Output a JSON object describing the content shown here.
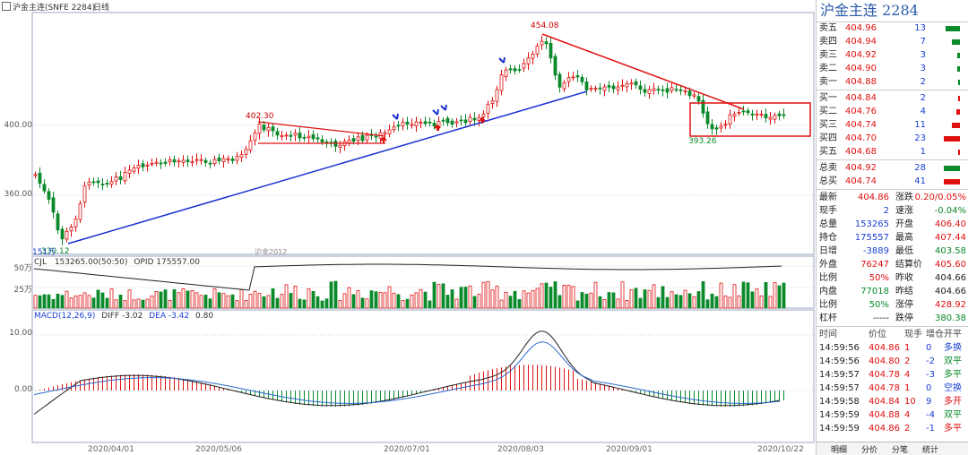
{
  "header": {
    "title": "沪金主连(SNFE 2284)",
    "period": "日线"
  },
  "watermark": "沪金2012",
  "price_axis": [
    "400.00",
    "360.00"
  ],
  "annotations": {
    "high": "454.08",
    "low": "330.12",
    "left_peak": "402.30",
    "right_low": "393.26",
    "vol_label": "151万"
  },
  "volume": {
    "title": "CJL",
    "vol": "153265.00(50:50)",
    "opid": "OPID 175557.00",
    "ticks": [
      "50万",
      "25万"
    ]
  },
  "macd": {
    "title": "MACD(12,26,9)",
    "diff": "DIFF -3.02",
    "dea": "DEA -3.42",
    "macd": "0.80",
    "ticks": [
      "10.00",
      "0.00"
    ]
  },
  "dates": [
    "2020/04/01",
    "2020/05/06",
    "2020/07/01",
    "2020/08/03",
    "2020/09/01",
    "2020/10/22"
  ],
  "sidebar": {
    "title": "沪金主连  2284",
    "asks": [
      {
        "label": "卖五",
        "price": "404.96",
        "vol": "13",
        "bar": 0.9
      },
      {
        "label": "卖四",
        "price": "404.94",
        "vol": "7",
        "bar": 0.5
      },
      {
        "label": "卖三",
        "price": "404.92",
        "vol": "3",
        "bar": 0.15
      },
      {
        "label": "卖二",
        "price": "404.90",
        "vol": "3",
        "bar": 0.15
      },
      {
        "label": "卖一",
        "price": "404.88",
        "vol": "2",
        "bar": 0.1
      }
    ],
    "bids": [
      {
        "label": "买一",
        "price": "404.84",
        "vol": "2",
        "bar": 0.1
      },
      {
        "label": "买二",
        "price": "404.76",
        "vol": "4",
        "bar": 0.2
      },
      {
        "label": "买三",
        "price": "404.74",
        "vol": "11",
        "bar": 0.5
      },
      {
        "label": "买四",
        "price": "404.70",
        "vol": "23",
        "bar": 1.0
      },
      {
        "label": "买五",
        "price": "404.68",
        "vol": "1",
        "bar": 0.05
      }
    ],
    "totals": [
      {
        "label": "总卖",
        "price": "404.92",
        "vol": "28"
      },
      {
        "label": "总买",
        "price": "404.74",
        "vol": "41"
      }
    ],
    "stats_left": [
      {
        "k": "最新",
        "v": "404.86",
        "c": "red"
      },
      {
        "k": "现手",
        "v": "2",
        "c": "blue"
      },
      {
        "k": "总量",
        "v": "153265",
        "c": "blue"
      },
      {
        "k": "持仓",
        "v": "175557",
        "c": "blue"
      },
      {
        "k": "日增",
        "v": "-3889",
        "c": "blue"
      },
      {
        "k": "外盘",
        "v": "76247",
        "c": "red"
      },
      {
        "k": "比例",
        "v": "50%",
        "c": "red"
      },
      {
        "k": "内盘",
        "v": "77018",
        "c": "green"
      },
      {
        "k": "比例",
        "v": "50%",
        "c": "green"
      },
      {
        "k": "杠杆",
        "v": "-----",
        "c": ""
      }
    ],
    "stats_right": [
      {
        "k": "涨跌",
        "v": "0.20/0.05%",
        "c": "red"
      },
      {
        "k": "速涨",
        "v": "-0.04%",
        "c": "green"
      },
      {
        "k": "开盘",
        "v": "406.40",
        "c": "red"
      },
      {
        "k": "最高",
        "v": "407.44",
        "c": "red"
      },
      {
        "k": "最低",
        "v": "403.58",
        "c": "green"
      },
      {
        "k": "结算价",
        "v": "405.60",
        "c": "red"
      },
      {
        "k": "昨收",
        "v": "404.66",
        "c": ""
      },
      {
        "k": "昨结",
        "v": "404.66",
        "c": ""
      },
      {
        "k": "涨停",
        "v": "428.92",
        "c": "red"
      },
      {
        "k": "跌停",
        "v": "380.38",
        "c": "green"
      }
    ],
    "ticks_header": [
      "时间",
      "价位",
      "现手",
      "增仓",
      "开平"
    ],
    "ticks": [
      {
        "t": "14:59:56",
        "p": "404.86",
        "v": "1",
        "d": "0",
        "o": "多换",
        "c": "blue"
      },
      {
        "t": "14:59:56",
        "p": "404.80",
        "v": "2",
        "d": "-2",
        "o": "双平",
        "c": "green"
      },
      {
        "t": "14:59:57",
        "p": "404.78",
        "v": "4",
        "d": "-3",
        "o": "多平",
        "c": "green"
      },
      {
        "t": "14:59:57",
        "p": "404.78",
        "v": "1",
        "d": "0",
        "o": "空换",
        "c": "blue"
      },
      {
        "t": "14:59:58",
        "p": "404.84",
        "v": "10",
        "d": "9",
        "o": "多开",
        "c": "red"
      },
      {
        "t": "14:59:59",
        "p": "404.88",
        "v": "4",
        "d": "-4",
        "o": "双平",
        "c": "green"
      },
      {
        "t": "14:59:59",
        "p": "404.86",
        "v": "2",
        "d": "-1",
        "o": "多平",
        "c": "red"
      }
    ],
    "tabs": [
      "明细",
      "分价",
      "分笔",
      "统计"
    ]
  }
}
